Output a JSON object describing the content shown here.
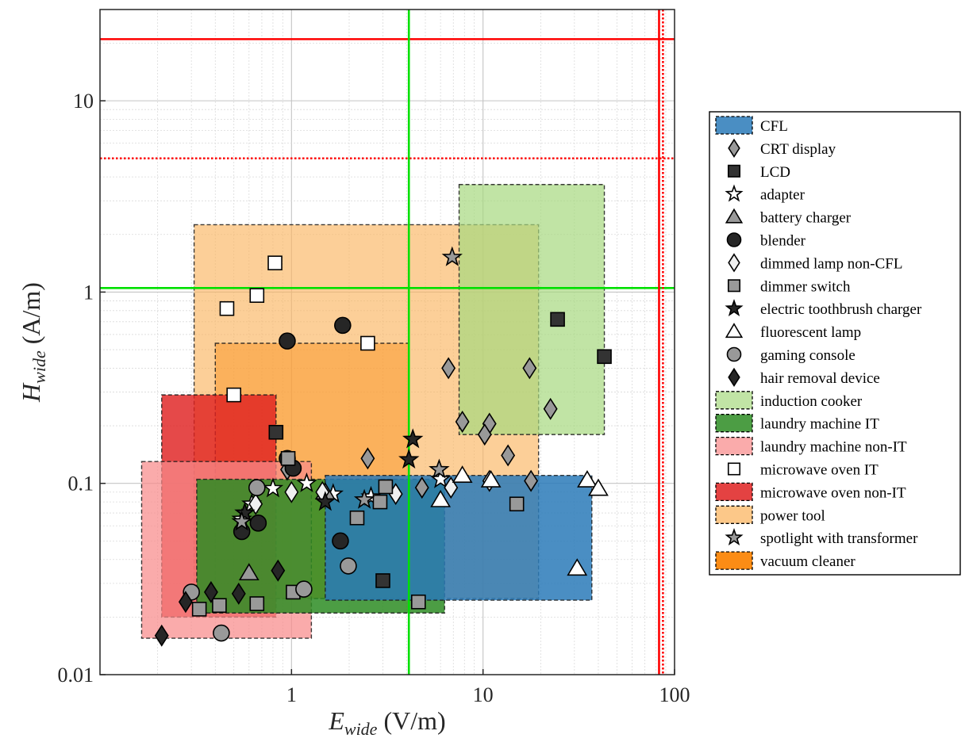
{
  "chart_data": {
    "type": "scatter",
    "title": "",
    "xlabel": {
      "base": "E",
      "sub": "wide",
      "unit": " (V/m)"
    },
    "ylabel": {
      "base": "H",
      "sub": "wide",
      "unit": " (A/m)"
    },
    "x_scale": "log",
    "y_scale": "log",
    "xlim": [
      0.1,
      100
    ],
    "ylim": [
      0.01,
      30
    ],
    "x_ticks": [
      {
        "value": 1,
        "label": "1"
      },
      {
        "value": 10,
        "label": "10"
      },
      {
        "value": 100,
        "label": "100"
      }
    ],
    "y_ticks": [
      {
        "value": 0.01,
        "label": "0.01"
      },
      {
        "value": 0.1,
        "label": "0.1"
      },
      {
        "value": 1,
        "label": "1"
      },
      {
        "value": 10,
        "label": "10"
      }
    ],
    "grid": true,
    "legend_position": "right-outside",
    "reference_lines": [
      {
        "axis": "y",
        "value": 21,
        "color": "#ff0000",
        "style": "solid"
      },
      {
        "axis": "y",
        "value": 5,
        "color": "#ff0000",
        "style": "dotted"
      },
      {
        "axis": "y",
        "value": 1.05,
        "color": "#00e000",
        "style": "solid"
      },
      {
        "axis": "x",
        "value": 4.1,
        "color": "#00e000",
        "style": "solid"
      },
      {
        "axis": "x",
        "value": 83,
        "color": "#ff0000",
        "style": "solid"
      },
      {
        "axis": "x",
        "value": 87,
        "color": "#ff0000",
        "style": "dotted"
      }
    ],
    "regions": [
      {
        "name": "power tool",
        "color": "#fbb561",
        "opacity": 0.65,
        "x": [
          0.31,
          19.5
        ],
        "y": [
          0.025,
          2.25
        ]
      },
      {
        "name": "vacuum cleaner",
        "color": "#fb8c15",
        "opacity": 0.45,
        "x": [
          0.4,
          4.1
        ],
        "y": [
          0.025,
          0.54
        ]
      },
      {
        "name": "induction cooker",
        "color": "#a6d97f",
        "opacity": 0.7,
        "x": [
          7.5,
          43
        ],
        "y": [
          0.18,
          3.65
        ]
      },
      {
        "name": "microwave oven non-IT",
        "color": "#df2121",
        "opacity": 0.82,
        "x": [
          0.21,
          0.83
        ],
        "y": [
          0.02,
          0.29
        ]
      },
      {
        "name": "laundry machine non-IT",
        "color": "#f88a8a",
        "opacity": 0.72,
        "x": [
          0.165,
          1.27
        ],
        "y": [
          0.0155,
          0.13
        ]
      },
      {
        "name": "laundry machine IT",
        "color": "#2d8c23",
        "opacity": 0.85,
        "x": [
          0.32,
          6.3
        ],
        "y": [
          0.021,
          0.105
        ]
      },
      {
        "name": "CFL",
        "color": "#2a7ab8",
        "opacity": 0.85,
        "x": [
          1.5,
          37
        ],
        "y": [
          0.0245,
          0.11
        ]
      }
    ],
    "series": [
      {
        "name": "CRT display",
        "marker": "diamond",
        "fill": "#999999",
        "points": [
          [
            6.6,
            0.4
          ],
          [
            17.5,
            0.4
          ],
          [
            22.5,
            0.245
          ],
          [
            7.8,
            0.21
          ],
          [
            10.8,
            0.205
          ],
          [
            10.2,
            0.18
          ],
          [
            13.5,
            0.14
          ],
          [
            17.8,
            0.103
          ],
          [
            2.5,
            0.135
          ],
          [
            4.8,
            0.095
          ],
          [
            0.95,
            0.118
          ]
        ]
      },
      {
        "name": "LCD",
        "marker": "square",
        "fill": "#333333",
        "points": [
          [
            24.5,
            0.72
          ],
          [
            43,
            0.46
          ],
          [
            0.83,
            0.185
          ],
          [
            3,
            0.031
          ]
        ]
      },
      {
        "name": "adapter",
        "marker": "star",
        "fill": "#ffffff",
        "points": [
          [
            0.8,
            0.094
          ],
          [
            1.2,
            0.1
          ],
          [
            0.55,
            0.065
          ],
          [
            0.62,
            0.078
          ],
          [
            2.6,
            0.085
          ],
          [
            1.65,
            0.088
          ],
          [
            6,
            0.105
          ]
        ]
      },
      {
        "name": "battery charger",
        "marker": "triangle",
        "fill": "#999999",
        "points": [
          [
            1.5,
            0.09
          ],
          [
            0.6,
            0.034
          ]
        ]
      },
      {
        "name": "blender",
        "marker": "circle",
        "fill": "#262626",
        "points": [
          [
            0.95,
            0.555
          ],
          [
            1.85,
            0.67
          ],
          [
            0.95,
            0.135
          ],
          [
            1.02,
            0.12
          ],
          [
            0.67,
            0.062
          ],
          [
            0.55,
            0.056
          ],
          [
            1.8,
            0.05
          ]
        ]
      },
      {
        "name": "dimmed lamp non-CFL",
        "marker": "diamond",
        "fill": "#f0f0f0",
        "points": [
          [
            1,
            0.09
          ],
          [
            1.45,
            0.09
          ],
          [
            0.65,
            0.078
          ],
          [
            3.5,
            0.088
          ],
          [
            6.8,
            0.095
          ],
          [
            10.8,
            0.103
          ]
        ]
      },
      {
        "name": "dimmer switch",
        "marker": "square",
        "fill": "#999999",
        "points": [
          [
            0.96,
            0.135
          ],
          [
            2.9,
            0.08
          ],
          [
            2.2,
            0.066
          ],
          [
            3.1,
            0.096
          ],
          [
            15,
            0.078
          ],
          [
            4.6,
            0.024
          ],
          [
            1.02,
            0.027
          ],
          [
            0.42,
            0.023
          ],
          [
            0.66,
            0.0235
          ],
          [
            0.33,
            0.022
          ]
        ]
      },
      {
        "name": "electric toothbrush charger",
        "marker": "star",
        "fill": "#262626",
        "points": [
          [
            4.3,
            0.17
          ],
          [
            4.1,
            0.133
          ],
          [
            1.5,
            0.08
          ],
          [
            0.57,
            0.07
          ]
        ]
      },
      {
        "name": "fluorescent lamp",
        "marker": "triangle",
        "fill": "#ffffff",
        "points": [
          [
            7.8,
            0.11
          ],
          [
            11,
            0.104
          ],
          [
            35,
            0.104
          ],
          [
            40,
            0.094
          ],
          [
            6,
            0.082
          ],
          [
            31,
            0.036
          ]
        ]
      },
      {
        "name": "gaming console",
        "marker": "circle",
        "fill": "#999999",
        "points": [
          [
            0.66,
            0.095
          ],
          [
            1.98,
            0.037
          ],
          [
            1.16,
            0.028
          ],
          [
            0.3,
            0.027
          ],
          [
            0.43,
            0.0165
          ]
        ]
      },
      {
        "name": "hair removal device",
        "marker": "diamond",
        "fill": "#262626",
        "points": [
          [
            0.85,
            0.035
          ],
          [
            0.38,
            0.027
          ],
          [
            0.53,
            0.0265
          ],
          [
            0.28,
            0.024
          ],
          [
            0.21,
            0.016
          ]
        ]
      },
      {
        "name": "microwave oven IT",
        "marker": "square",
        "fill": "#ffffff",
        "points": [
          [
            0.82,
            1.42
          ],
          [
            0.66,
            0.96
          ],
          [
            0.46,
            0.82
          ],
          [
            2.5,
            0.54
          ],
          [
            0.5,
            0.29
          ]
        ]
      },
      {
        "name": "spotlight with transformer",
        "marker": "star",
        "fill": "#999999",
        "points": [
          [
            6.9,
            1.52
          ],
          [
            5.9,
            0.118
          ],
          [
            2.4,
            0.082
          ],
          [
            0.55,
            0.063
          ]
        ]
      }
    ],
    "legend": [
      {
        "label": "CFL",
        "kind": "patch",
        "color": "#2a7ab8",
        "opacity": 0.85
      },
      {
        "label": "CRT display",
        "kind": "marker",
        "marker": "diamond",
        "fill": "#999999"
      },
      {
        "label": "LCD",
        "kind": "marker",
        "marker": "square",
        "fill": "#333333"
      },
      {
        "label": "adapter",
        "kind": "marker",
        "marker": "star",
        "fill": "#ffffff"
      },
      {
        "label": "battery charger",
        "kind": "marker",
        "marker": "triangle",
        "fill": "#999999"
      },
      {
        "label": "blender",
        "kind": "marker",
        "marker": "circle",
        "fill": "#262626"
      },
      {
        "label": "dimmed lamp non-CFL",
        "kind": "marker",
        "marker": "diamond",
        "fill": "#f0f0f0"
      },
      {
        "label": "dimmer switch",
        "kind": "marker",
        "marker": "square",
        "fill": "#999999"
      },
      {
        "label": "electric toothbrush charger",
        "kind": "marker",
        "marker": "star",
        "fill": "#262626"
      },
      {
        "label": "fluorescent lamp",
        "kind": "marker",
        "marker": "triangle",
        "fill": "#ffffff"
      },
      {
        "label": "gaming console",
        "kind": "marker",
        "marker": "circle",
        "fill": "#999999"
      },
      {
        "label": "hair removal device",
        "kind": "marker",
        "marker": "diamond",
        "fill": "#262626"
      },
      {
        "label": "induction cooker",
        "kind": "patch",
        "color": "#a6d97f",
        "opacity": 0.7
      },
      {
        "label": "laundry machine IT",
        "kind": "patch",
        "color": "#2d8c23",
        "opacity": 0.85
      },
      {
        "label": "laundry machine non-IT",
        "kind": "patch",
        "color": "#f88a8a",
        "opacity": 0.72
      },
      {
        "label": "microwave oven IT",
        "kind": "marker",
        "marker": "square",
        "fill": "#ffffff"
      },
      {
        "label": "microwave oven non-IT",
        "kind": "patch",
        "color": "#df2121",
        "opacity": 0.85
      },
      {
        "label": "power tool",
        "kind": "patch",
        "color": "#fbb561",
        "opacity": 0.75
      },
      {
        "label": "spotlight with transformer",
        "kind": "marker",
        "marker": "star",
        "fill": "#999999"
      },
      {
        "label": "vacuum cleaner",
        "kind": "patch",
        "color": "#fb8c15",
        "opacity": 1
      }
    ]
  }
}
